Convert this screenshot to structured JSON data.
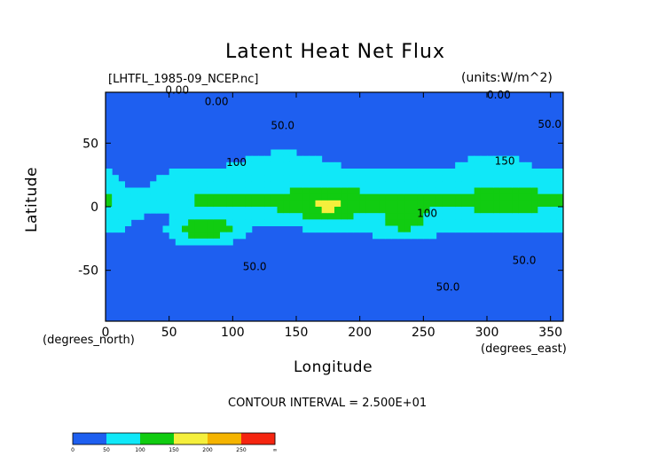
{
  "chart_data": {
    "type": "heatmap",
    "title": "Latent Heat Net Flux",
    "file_label": "[LHTFL_1985-09_NCEP.nc]",
    "units_label": "(units:W/m^2)",
    "xlabel": "Longitude",
    "ylabel": "Latitude",
    "x_unit_label": "(degrees_east)",
    "y_unit_label": "(degrees_north)",
    "xlim": [
      0,
      360
    ],
    "ylim": [
      -90,
      90
    ],
    "x_ticks": [
      "0",
      "50",
      "100",
      "150",
      "200",
      "250",
      "300",
      "350"
    ],
    "x_tick_values": [
      0,
      50,
      100,
      150,
      200,
      250,
      300,
      350
    ],
    "y_ticks": [
      "50",
      "0",
      "-50"
    ],
    "y_tick_values": [
      50,
      0,
      -50
    ],
    "contour_interval_label": "CONTOUR INTERVAL = 2.500E+01",
    "contour_labels": [
      {
        "text": "0.00",
        "x": 47,
        "y": 89
      },
      {
        "text": "0.00",
        "x": 78,
        "y": 80
      },
      {
        "text": "50.0",
        "x": 130,
        "y": 61
      },
      {
        "text": "100",
        "x": 95,
        "y": 32
      },
      {
        "text": "100",
        "x": 245,
        "y": -8
      },
      {
        "text": "0.00",
        "x": 300,
        "y": 85
      },
      {
        "text": "50.0",
        "x": 340,
        "y": 62
      },
      {
        "text": "50.0",
        "x": 108,
        "y": -50
      },
      {
        "text": "50.0",
        "x": 320,
        "y": -45
      },
      {
        "text": "150",
        "x": 306,
        "y": 33
      },
      {
        "text": "50.0",
        "x": 260,
        "y": -66
      }
    ],
    "legend": {
      "levels": [
        "0",
        "50",
        "100",
        "150",
        "200",
        "250",
        "∞"
      ],
      "colors": [
        "#1e5ff0",
        "#1e5ff0",
        "#10e8f8",
        "#10e8f8",
        "#11cc11",
        "#11cc11",
        "#f5ef3c",
        "#f5ef3c",
        "#f5b400",
        "#f5b400",
        "#f52510",
        "#f52510"
      ]
    },
    "palette": {
      "band_0_50": "#1e5ff0",
      "band_50_100": "#10e8f8",
      "band_100_150": "#11cc11",
      "band_150_200": "#f5ef3c",
      "band_200_250": "#f5b400",
      "band_250_inf": "#f52510"
    }
  }
}
